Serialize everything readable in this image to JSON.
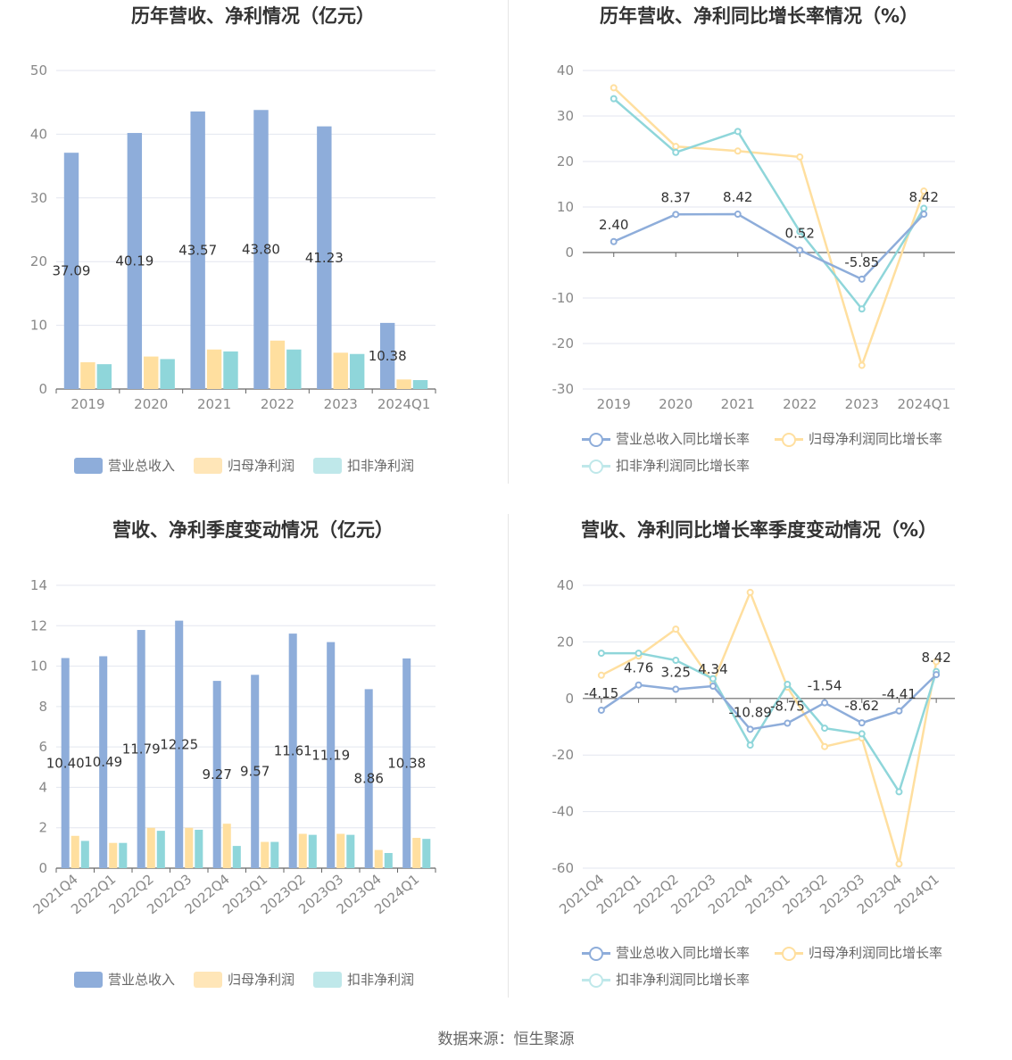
{
  "source": "数据来源：恒生聚源",
  "chart_data": [
    {
      "type": "bar",
      "title": "历年营收、净利情况（亿元）",
      "categories": [
        "2019",
        "2020",
        "2021",
        "2022",
        "2023",
        "2024Q1"
      ],
      "ylim": [
        0,
        50
      ],
      "yticks": [
        0,
        10,
        20,
        30,
        40,
        50
      ],
      "label_series": 0,
      "series": [
        {
          "name": "营业总收入",
          "color": "#8eadda",
          "values": [
            37.09,
            40.19,
            43.57,
            43.8,
            41.23,
            10.38
          ],
          "labels": [
            "37.09",
            "40.19",
            "43.57",
            "43.80",
            "41.23",
            "10.38"
          ]
        },
        {
          "name": "归母净利润",
          "color": "#ffdf9f",
          "values": [
            4.2,
            5.1,
            6.2,
            7.6,
            5.7,
            1.5
          ]
        },
        {
          "name": "扣非净利润",
          "color": "#8fd6da",
          "values": [
            3.9,
            4.7,
            5.9,
            6.2,
            5.5,
            1.4
          ]
        }
      ]
    },
    {
      "type": "line",
      "title": "历年营收、净利同比增长率情况（%）",
      "categories": [
        "2019",
        "2020",
        "2021",
        "2022",
        "2023",
        "2024Q1"
      ],
      "ylim": [
        -30,
        40
      ],
      "yticks": [
        -30,
        -20,
        -10,
        0,
        10,
        20,
        30,
        40
      ],
      "label_series": 0,
      "series": [
        {
          "name": "营业总收入同比增长率",
          "color": "#8eadda",
          "values": [
            2.4,
            8.37,
            8.42,
            0.52,
            -5.85,
            8.42
          ],
          "labels": [
            "2.40",
            "8.37",
            "8.42",
            "0.52",
            "-5.85",
            "8.42"
          ]
        },
        {
          "name": "归母净利润同比增长率",
          "color": "#ffdf9f",
          "values": [
            36.2,
            23.3,
            22.3,
            21.0,
            -24.8,
            13.5
          ]
        },
        {
          "name": "扣非净利润同比增长率",
          "color": "#8fd6da",
          "values": [
            33.8,
            22.0,
            26.6,
            4.6,
            -12.4,
            9.7
          ]
        }
      ]
    },
    {
      "type": "bar",
      "title": "营收、净利季度变动情况（亿元）",
      "categories": [
        "2021Q4",
        "2022Q1",
        "2022Q2",
        "2022Q3",
        "2022Q4",
        "2023Q1",
        "2023Q2",
        "2023Q3",
        "2023Q4",
        "2024Q1"
      ],
      "ylim": [
        0,
        14
      ],
      "yticks": [
        0,
        2,
        4,
        6,
        8,
        10,
        12,
        14
      ],
      "label_series": 0,
      "rotate_x": true,
      "series": [
        {
          "name": "营业总收入",
          "color": "#8eadda",
          "values": [
            10.4,
            10.49,
            11.79,
            12.25,
            9.27,
            9.57,
            11.61,
            11.19,
            8.86,
            10.38
          ],
          "labels": [
            "10.40",
            "10.49",
            "11.79",
            "12.25",
            "9.27",
            "9.57",
            "11.61",
            "11.19",
            "8.86",
            "10.38"
          ]
        },
        {
          "name": "归母净利润",
          "color": "#ffdf9f",
          "values": [
            1.6,
            1.25,
            2.0,
            2.0,
            2.2,
            1.3,
            1.7,
            1.7,
            0.9,
            1.5
          ]
        },
        {
          "name": "扣非净利润",
          "color": "#8fd6da",
          "values": [
            1.35,
            1.25,
            1.85,
            1.9,
            1.1,
            1.3,
            1.65,
            1.65,
            0.75,
            1.45
          ]
        }
      ]
    },
    {
      "type": "line",
      "title": "营收、净利同比增长率季度变动情况（%）",
      "categories": [
        "2021Q4",
        "2022Q1",
        "2022Q2",
        "2022Q3",
        "2022Q4",
        "2023Q1",
        "2023Q2",
        "2023Q3",
        "2023Q4",
        "2024Q1"
      ],
      "ylim": [
        -60,
        40
      ],
      "yticks": [
        -60,
        -40,
        -20,
        0,
        20,
        40
      ],
      "label_series": 0,
      "rotate_x": true,
      "series": [
        {
          "name": "营业总收入同比增长率",
          "color": "#8eadda",
          "values": [
            -4.15,
            4.76,
            3.25,
            4.34,
            -10.89,
            -8.75,
            -1.54,
            -8.62,
            -4.41,
            8.42
          ],
          "labels": [
            "-4.15",
            "4.76",
            "3.25",
            "4.34",
            "-10.89",
            "-8.75",
            "-1.54",
            "-8.62",
            "-4.41",
            "8.42"
          ]
        },
        {
          "name": "归母净利润同比增长率",
          "color": "#ffdf9f",
          "values": [
            8.2,
            15.0,
            24.5,
            5.5,
            37.5,
            4.0,
            -17.0,
            -14.0,
            -58.5,
            13.0
          ]
        },
        {
          "name": "扣非净利润同比增长率",
          "color": "#8fd6da",
          "values": [
            16.0,
            16.0,
            13.5,
            7.0,
            -16.5,
            5.0,
            -10.5,
            -12.5,
            -33.0,
            9.5
          ]
        }
      ]
    }
  ]
}
